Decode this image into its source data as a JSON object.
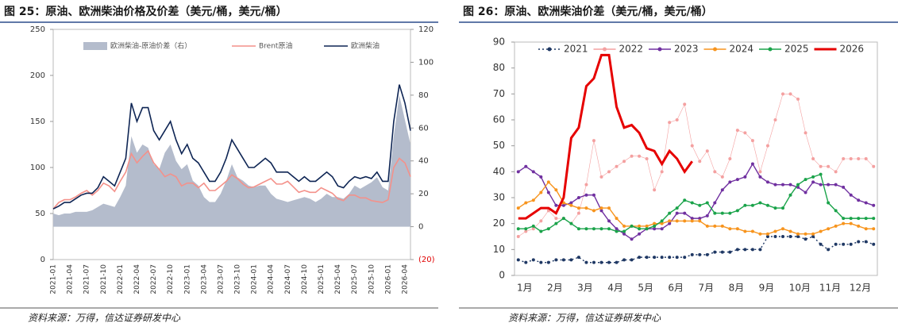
{
  "chart_data": [
    {
      "type": "line",
      "title": "图 25：原油、欧洲柴油价格及价差（美元/桶，美元/桶）",
      "source": "资料来源：万得，信达证券研发中心",
      "categories": [
        "2021-01",
        null,
        null,
        "2021-04",
        null,
        null,
        "2021-07",
        null,
        null,
        "2021-10",
        null,
        null,
        "2022-01",
        null,
        null,
        "2022-04",
        null,
        null,
        "2022-07",
        null,
        null,
        "2022-10",
        null,
        null,
        "2023-01",
        null,
        null,
        "2023-04",
        null,
        null,
        "2023-07",
        null,
        null,
        "2023-10",
        null,
        null,
        "2024-01",
        null,
        null,
        "2024-04",
        null,
        null,
        "2024-07",
        null,
        null,
        "2024-10",
        null,
        null,
        "2025-01",
        null,
        null,
        "2025-04",
        null,
        null,
        "2025-07",
        null,
        null,
        "2025-10",
        null,
        null,
        "2026-01",
        null,
        null,
        "2026-04",
        null
      ],
      "ylim": [
        0,
        250
      ],
      "yticks": [
        0,
        50,
        100,
        150,
        200,
        250
      ],
      "y2lim": [
        -20,
        120
      ],
      "y2ticks": [
        {
          "value": -20,
          "label": "(20)"
        },
        0,
        20,
        40,
        60,
        80,
        100,
        120
      ],
      "series": [
        {
          "name": "欧洲柴油-原油价差（右）",
          "color": "#b4bccc",
          "style": "area",
          "axis": "y2",
          "values": [
            8,
            7,
            8,
            8,
            9,
            9,
            9,
            10,
            12,
            14,
            13,
            12,
            18,
            25,
            55,
            45,
            50,
            48,
            38,
            35,
            45,
            50,
            40,
            35,
            38,
            28,
            25,
            18,
            15,
            15,
            20,
            28,
            38,
            30,
            28,
            25,
            24,
            25,
            25,
            20,
            17,
            16,
            15,
            16,
            17,
            18,
            17,
            15,
            17,
            20,
            18,
            18,
            17,
            20,
            25,
            23,
            25,
            27,
            30,
            24,
            22,
            55,
            80,
            65,
            50
          ]
        },
        {
          "name": "Brent原油",
          "color": "#f4918a",
          "values": [
            55,
            62,
            65,
            65,
            68,
            72,
            75,
            70,
            75,
            83,
            80,
            74,
            85,
            95,
            115,
            105,
            112,
            118,
            105,
            98,
            90,
            93,
            90,
            80,
            83,
            83,
            78,
            83,
            75,
            75,
            80,
            85,
            92,
            88,
            82,
            78,
            79,
            82,
            85,
            88,
            82,
            82,
            85,
            79,
            73,
            75,
            73,
            73,
            78,
            75,
            72,
            66,
            64,
            70,
            70,
            67,
            67,
            64,
            63,
            62,
            65,
            100,
            110,
            105,
            90
          ]
        },
        {
          "name": "欧洲柴油",
          "color": "#0e2554",
          "values": [
            55,
            58,
            62,
            62,
            66,
            70,
            72,
            72,
            78,
            90,
            85,
            80,
            95,
            110,
            170,
            150,
            165,
            165,
            140,
            130,
            140,
            150,
            130,
            115,
            125,
            110,
            105,
            95,
            85,
            85,
            95,
            110,
            130,
            120,
            110,
            100,
            100,
            105,
            110,
            105,
            95,
            95,
            95,
            90,
            85,
            90,
            85,
            85,
            90,
            95,
            90,
            80,
            78,
            85,
            90,
            88,
            90,
            88,
            95,
            85,
            85,
            150,
            190,
            170,
            140
          ]
        }
      ]
    },
    {
      "type": "line",
      "title": "图 26：原油、欧洲柴油价差（美元/桶，美元/桶）",
      "source": "资料来源：万得，信达证券研发中心",
      "categories": [
        "1月",
        null,
        null,
        null,
        "2月",
        null,
        null,
        null,
        "3月",
        null,
        null,
        null,
        "4月",
        null,
        null,
        null,
        "5月",
        null,
        null,
        null,
        "6月",
        null,
        null,
        null,
        "7月",
        null,
        null,
        null,
        "8月",
        null,
        null,
        null,
        "9月",
        null,
        null,
        null,
        "10月",
        null,
        null,
        null,
        "11月",
        null,
        null,
        null,
        "12月",
        null,
        null,
        null
      ],
      "ylim": [
        0,
        90
      ],
      "yticks": [
        0,
        10,
        20,
        30,
        40,
        50,
        60,
        70,
        80,
        90
      ],
      "series": [
        {
          "name": "2021",
          "color": "#1f3864",
          "values": [
            6,
            5,
            6,
            5,
            5,
            6,
            6,
            6,
            7,
            5,
            5,
            5,
            5,
            5,
            6,
            6,
            7,
            7,
            7,
            7,
            7,
            7,
            7,
            8,
            8,
            8,
            9,
            9,
            9,
            10,
            10,
            10,
            10,
            15,
            15,
            15,
            15,
            15,
            14,
            15,
            12,
            10,
            12,
            12,
            12,
            13,
            13,
            12
          ]
        },
        {
          "name": "2022",
          "color": "#f4a0a0",
          "values": [
            15,
            17,
            18,
            21,
            25,
            22,
            22,
            20,
            24,
            35,
            52,
            38,
            40,
            42,
            44,
            46,
            46,
            45,
            33,
            40,
            59,
            60,
            66,
            50,
            44,
            48,
            40,
            38,
            45,
            56,
            55,
            52,
            40,
            50,
            60,
            70,
            70,
            68,
            55,
            45,
            42,
            42,
            40,
            45,
            45,
            45,
            45,
            42
          ]
        },
        {
          "name": "2023",
          "color": "#7030a0",
          "values": [
            40,
            42,
            40,
            38,
            32,
            27,
            27,
            28,
            30,
            31,
            31,
            25,
            21,
            18,
            16,
            14,
            16,
            18,
            18,
            18,
            20,
            24,
            24,
            22,
            22,
            23,
            28,
            33,
            36,
            37,
            38,
            43,
            38,
            36,
            35,
            35,
            35,
            34,
            32,
            36,
            35,
            35,
            35,
            34,
            31,
            29,
            28,
            27
          ]
        },
        {
          "name": "2024",
          "color": "#f7941d",
          "values": [
            26,
            28,
            29,
            32,
            36,
            33,
            28,
            27,
            26,
            26,
            25,
            26,
            26,
            22,
            19,
            19,
            19,
            19,
            20,
            20,
            21,
            21,
            21,
            21,
            21,
            19,
            19,
            19,
            18,
            18,
            17,
            17,
            16,
            16,
            17,
            18,
            17,
            16,
            16,
            16,
            17,
            18,
            19,
            20,
            20,
            19,
            18,
            18
          ]
        },
        {
          "name": "2025",
          "color": "#1aa34a",
          "values": [
            18,
            18,
            19,
            17,
            18,
            20,
            22,
            20,
            18,
            18,
            18,
            18,
            18,
            17,
            17,
            19,
            18,
            18,
            19,
            21,
            24,
            26,
            29,
            28,
            27,
            28,
            24,
            24,
            24,
            25,
            27,
            27,
            28,
            27,
            26,
            26,
            31,
            35,
            37,
            38,
            39,
            28,
            25,
            22,
            22,
            22,
            22,
            22
          ]
        },
        {
          "name": "2026",
          "color": "#e60000",
          "values": [
            22,
            22,
            24,
            26,
            26,
            24,
            30,
            53,
            57,
            73,
            76,
            85,
            85,
            65,
            57,
            58,
            55,
            49,
            48,
            43,
            48,
            45,
            40,
            44,
            null,
            null,
            null,
            null,
            null,
            null,
            null,
            null,
            null,
            null,
            null,
            null,
            null,
            null,
            null,
            null,
            null,
            null,
            null,
            null,
            null,
            null,
            null,
            null
          ]
        }
      ]
    }
  ]
}
